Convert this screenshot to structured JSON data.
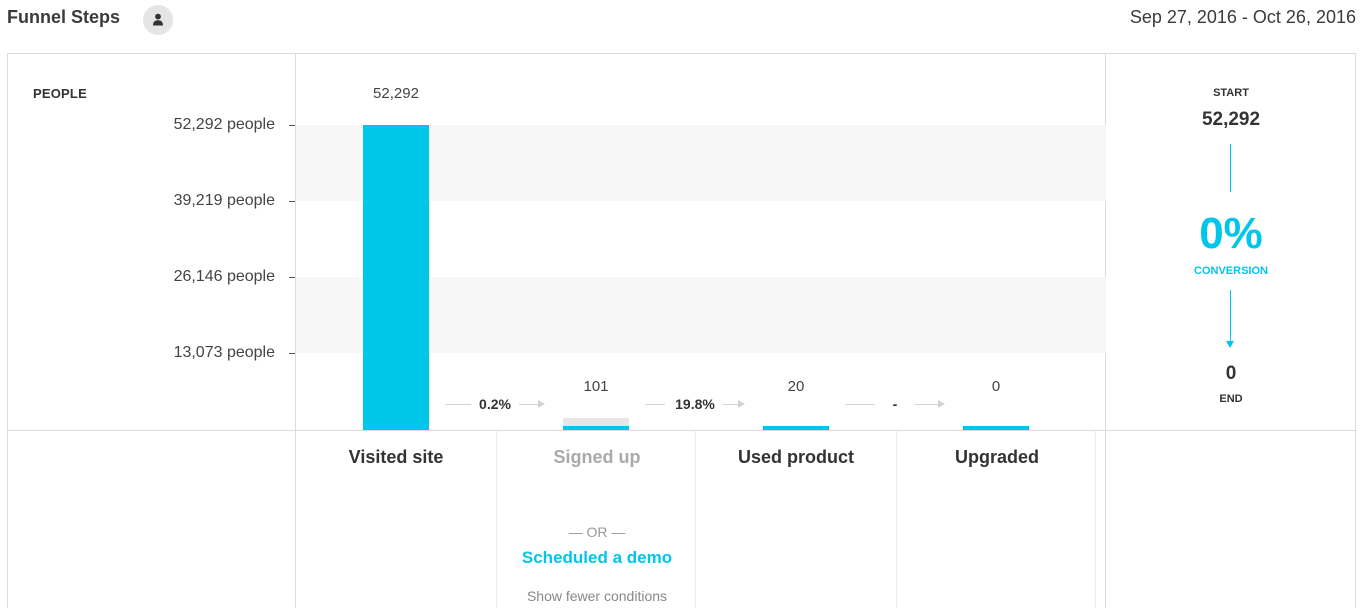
{
  "header": {
    "title": "Funnel Steps",
    "date_range": "Sep 27, 2016 - Oct 26, 2016"
  },
  "chart": {
    "axis_title": "PEOPLE",
    "y_ticks": [
      "52,292 people",
      "39,219 people",
      "26,146 people",
      "13,073 people"
    ]
  },
  "chart_data": {
    "type": "bar",
    "categories": [
      "Visited site",
      "Signed up",
      "Used product",
      "Upgraded"
    ],
    "values": [
      52292,
      101,
      20,
      0
    ],
    "value_labels": [
      "52,292",
      "101",
      "20",
      "0"
    ],
    "ylim": [
      0,
      52292
    ],
    "y_ticks": [
      52292,
      39219,
      26146,
      13073
    ],
    "step_rates": [
      "0.2%",
      "19.8%",
      "-"
    ],
    "bar_color": "#00c6ea"
  },
  "summary": {
    "start_label": "START",
    "start_value": "52,292",
    "conversion": "0%",
    "conversion_label": "CONVERSION",
    "end_value": "0",
    "end_label": "END"
  },
  "steps": {
    "names": [
      "Visited site",
      "Signed up",
      "Used product",
      "Upgraded"
    ],
    "or_separator": "— OR —",
    "alt_condition": "Scheduled a demo",
    "show_fewer": "Show fewer conditions"
  },
  "colors": {
    "accent": "#00c6ea",
    "muted": "#aaaaaa"
  },
  "icons": {
    "owner": "user-icon"
  }
}
